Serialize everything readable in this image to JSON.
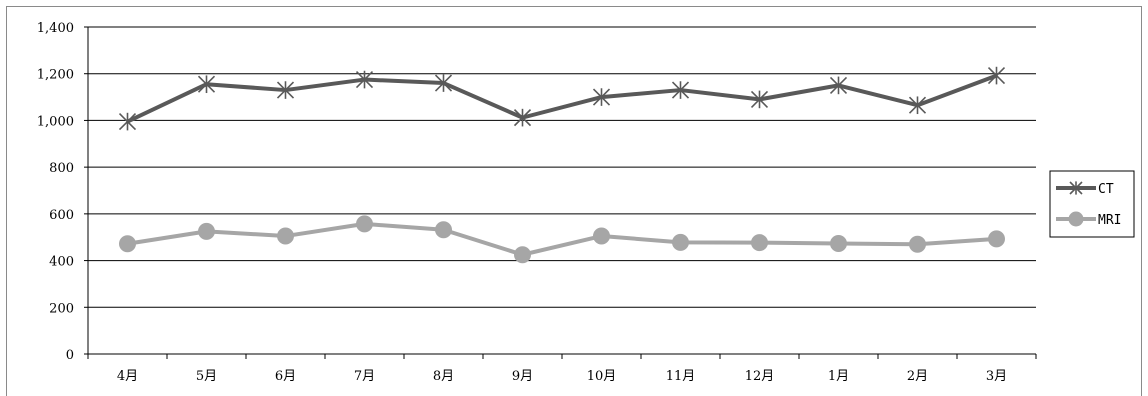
{
  "chart_data": {
    "type": "line",
    "categories": [
      "4月",
      "5月",
      "6月",
      "7月",
      "8月",
      "9月",
      "10月",
      "11月",
      "12月",
      "1月",
      "2月",
      "3月"
    ],
    "ylim": [
      0,
      1400
    ],
    "yticks": [
      0,
      200,
      400,
      600,
      800,
      1000,
      1200,
      1400
    ],
    "ytick_labels": [
      "0",
      "200",
      "400",
      "600",
      "800",
      "1,000",
      "1,200",
      "1,400"
    ],
    "grid": true,
    "legend": "right",
    "series": [
      {
        "name": "CT",
        "color": "#595959",
        "marker": "star",
        "values": [
          995,
          1155,
          1130,
          1175,
          1160,
          1012,
          1100,
          1130,
          1090,
          1150,
          1065,
          1192
        ]
      },
      {
        "name": "MRI",
        "color": "#a6a6a6",
        "marker": "circle",
        "values": [
          472,
          525,
          505,
          557,
          532,
          425,
          505,
          478,
          477,
          473,
          470,
          493
        ]
      }
    ]
  }
}
